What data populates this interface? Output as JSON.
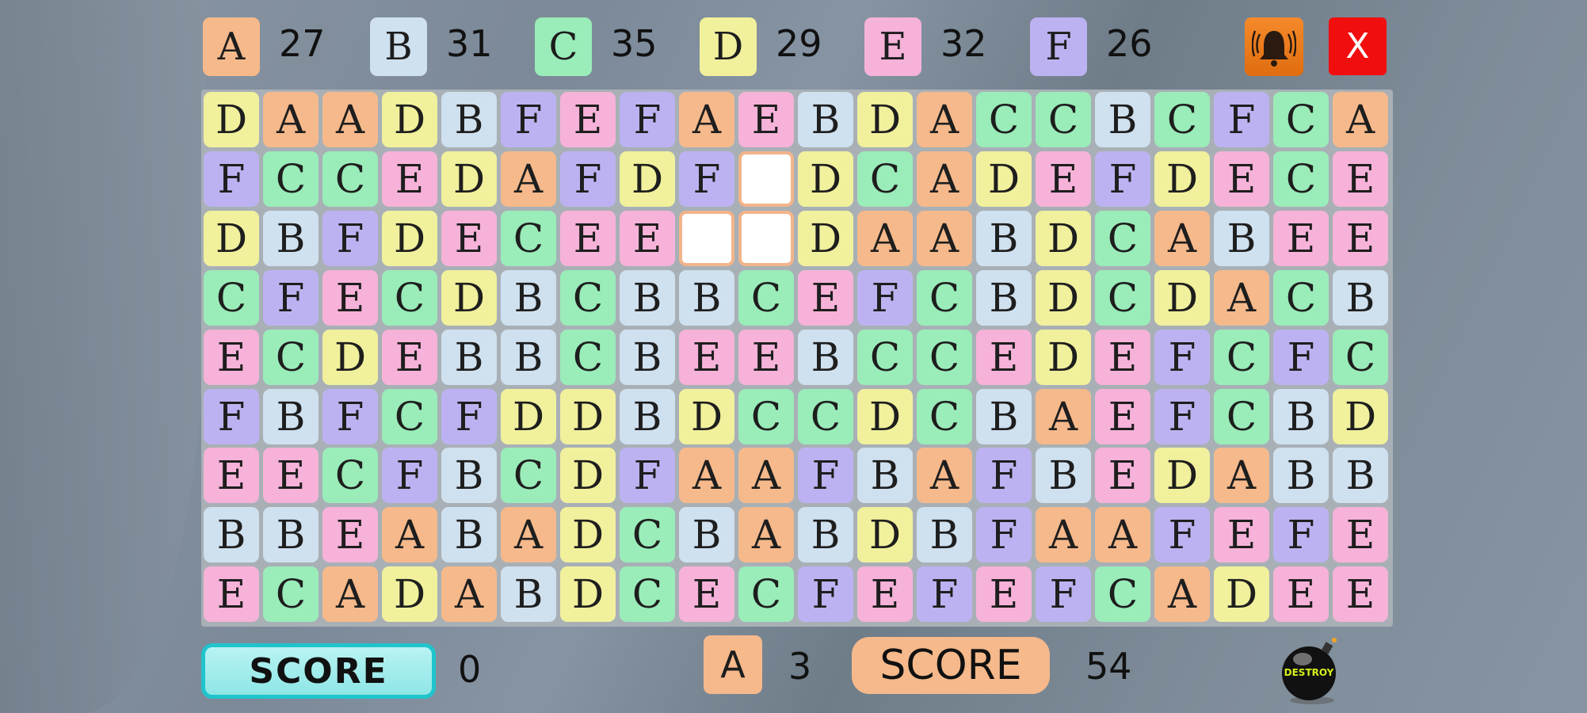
{
  "colors": {
    "A": "#f6b98b",
    "B": "#cfe0ef",
    "C": "#9aecb9",
    "D": "#f1f09c",
    "E": "#f6b2d8",
    "F": "#bdb2f1"
  },
  "counters": [
    {
      "letter": "A",
      "count": "27"
    },
    {
      "letter": "B",
      "count": "31"
    },
    {
      "letter": "C",
      "count": "35"
    },
    {
      "letter": "D",
      "count": "29"
    },
    {
      "letter": "E",
      "count": "32"
    },
    {
      "letter": "F",
      "count": "26"
    }
  ],
  "alarm_icon": "bell-icon",
  "close_label": "X",
  "grid": [
    [
      "D",
      "A",
      "A",
      "D",
      "B",
      "F",
      "E",
      "F",
      "A",
      "E",
      "B",
      "D",
      "A",
      "C",
      "C",
      "B",
      "C",
      "F",
      "C",
      "A"
    ],
    [
      "F",
      "C",
      "C",
      "E",
      "D",
      "A",
      "F",
      "D",
      "F",
      "",
      "D",
      "C",
      "A",
      "D",
      "E",
      "F",
      "D",
      "E",
      "C",
      "E"
    ],
    [
      "D",
      "B",
      "F",
      "D",
      "E",
      "C",
      "E",
      "E",
      "",
      "",
      "D",
      "A",
      "A",
      "B",
      "D",
      "C",
      "A",
      "B",
      "E",
      "E"
    ],
    [
      "C",
      "F",
      "E",
      "C",
      "D",
      "B",
      "C",
      "B",
      "B",
      "C",
      "E",
      "F",
      "C",
      "B",
      "D",
      "C",
      "D",
      "A",
      "C",
      "B"
    ],
    [
      "E",
      "C",
      "D",
      "E",
      "B",
      "B",
      "C",
      "B",
      "E",
      "E",
      "B",
      "C",
      "C",
      "E",
      "D",
      "E",
      "F",
      "C",
      "F",
      "C"
    ],
    [
      "F",
      "B",
      "F",
      "C",
      "F",
      "D",
      "D",
      "B",
      "D",
      "C",
      "C",
      "D",
      "C",
      "B",
      "A",
      "E",
      "F",
      "C",
      "B",
      "D"
    ],
    [
      "E",
      "E",
      "C",
      "F",
      "B",
      "C",
      "D",
      "F",
      "A",
      "A",
      "F",
      "B",
      "A",
      "F",
      "B",
      "E",
      "D",
      "A",
      "B",
      "B"
    ],
    [
      "B",
      "B",
      "E",
      "A",
      "B",
      "A",
      "D",
      "C",
      "B",
      "A",
      "B",
      "D",
      "B",
      "F",
      "A",
      "A",
      "F",
      "E",
      "F",
      "E"
    ],
    [
      "E",
      "C",
      "A",
      "D",
      "A",
      "B",
      "D",
      "C",
      "E",
      "C",
      "F",
      "E",
      "F",
      "E",
      "F",
      "C",
      "A",
      "D",
      "E",
      "E"
    ]
  ],
  "footer": {
    "score_button_label": "SCORE",
    "player_score": "0",
    "current_letter": "A",
    "current_count": "3",
    "score_label": "SCORE",
    "total_score": "54",
    "bomb_label": "DESTROY"
  }
}
